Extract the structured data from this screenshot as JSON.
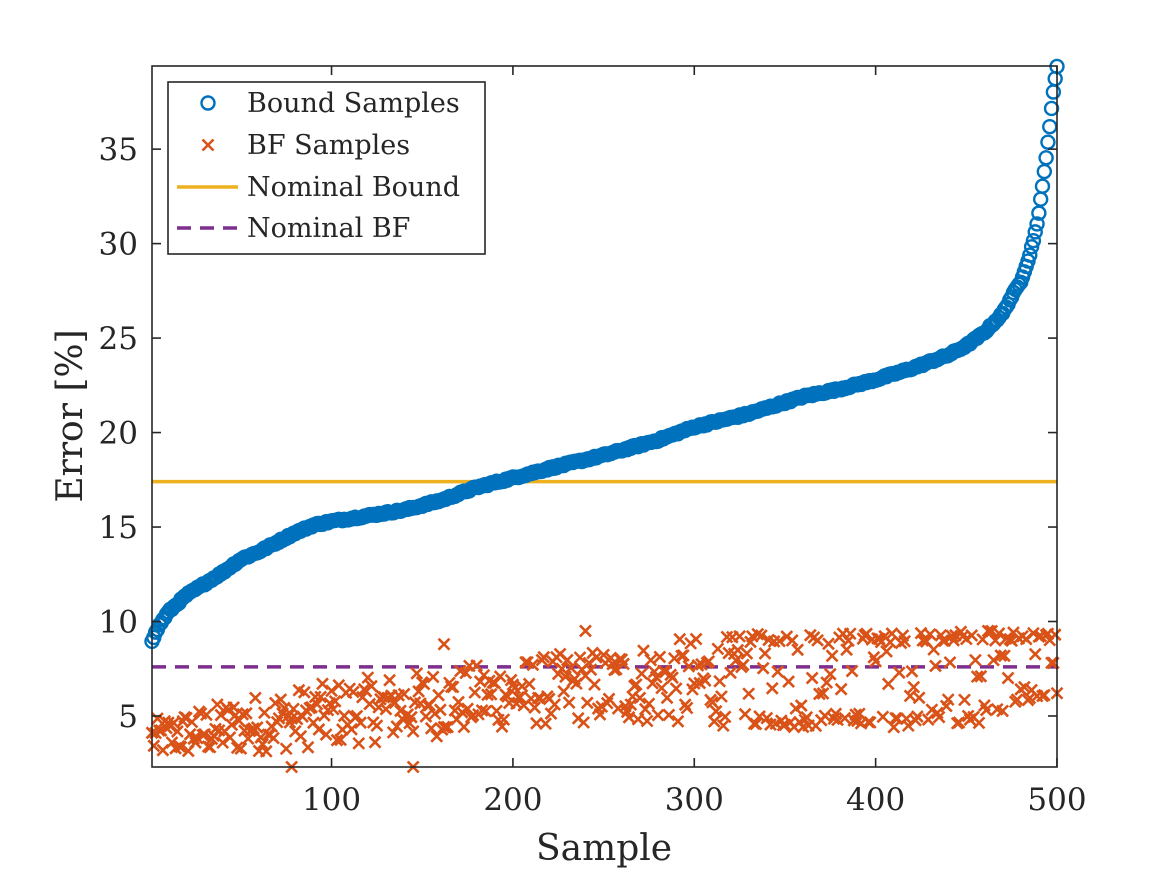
{
  "chart_data": {
    "type": "scatter",
    "xlabel": "Sample",
    "ylabel": "Error [%]",
    "xlim": [
      1,
      500
    ],
    "ylim": [
      2.3,
      39.4
    ],
    "xticks": [
      100,
      200,
      300,
      400,
      500
    ],
    "yticks": [
      5,
      10,
      15,
      20,
      25,
      30,
      35
    ],
    "grid": false,
    "legend_position": "top-left",
    "colors": {
      "bound_samples": "#0072BD",
      "bf_samples": "#D95319",
      "nominal_bound": "#EDB120",
      "nominal_bf": "#7E2F8E"
    },
    "legend": [
      {
        "label": "Bound Samples",
        "marker": "circle"
      },
      {
        "label": "BF Samples",
        "marker": "x"
      },
      {
        "label": "Nominal Bound",
        "marker": "solid-line"
      },
      {
        "label": "Nominal BF",
        "marker": "dashed-line"
      }
    ],
    "series": [
      {
        "name": "Bound Samples",
        "marker": "circle",
        "n": 500,
        "sorted_ascending": true,
        "curve_x": [
          1,
          5,
          10,
          20,
          30,
          40,
          50,
          60,
          70,
          80,
          90,
          100,
          120,
          140,
          160,
          180,
          200,
          220,
          250,
          280,
          300,
          330,
          360,
          380,
          400,
          420,
          440,
          450,
          460,
          470,
          475,
          480,
          485,
          488,
          490,
          492,
          494,
          496,
          498,
          500
        ],
        "curve_y": [
          9.0,
          9.8,
          10.5,
          11.4,
          12.0,
          12.6,
          13.3,
          13.7,
          14.2,
          14.7,
          15.1,
          15.3,
          15.6,
          15.9,
          16.4,
          17.1,
          17.6,
          18.1,
          18.8,
          19.6,
          20.3,
          21.0,
          21.9,
          22.3,
          22.8,
          23.4,
          24.1,
          24.6,
          25.3,
          26.3,
          27.2,
          28.0,
          29.4,
          30.6,
          31.6,
          33.0,
          34.6,
          36.2,
          38.0,
          39.4
        ]
      },
      {
        "name": "BF Samples",
        "marker": "x",
        "n": 500,
        "trend_x": [
          1,
          50,
          100,
          150,
          200,
          250,
          300,
          350,
          400,
          450,
          500
        ],
        "trend_lower": [
          2.8,
          3.0,
          3.4,
          3.8,
          4.4,
          4.6,
          4.5,
          4.4,
          4.4,
          4.4,
          6.0
        ],
        "trend_upper": [
          4.8,
          6.0,
          6.8,
          7.4,
          8.0,
          8.6,
          9.2,
          9.4,
          9.4,
          9.6,
          9.4
        ],
        "outliers": [
          {
            "x": 78,
            "y": 2.3
          },
          {
            "x": 145,
            "y": 2.3
          },
          {
            "x": 162,
            "y": 8.8
          },
          {
            "x": 240,
            "y": 9.5
          }
        ]
      },
      {
        "name": "Nominal Bound",
        "type": "hline",
        "y": 17.4
      },
      {
        "name": "Nominal BF",
        "type": "hline",
        "y": 7.6
      }
    ]
  }
}
